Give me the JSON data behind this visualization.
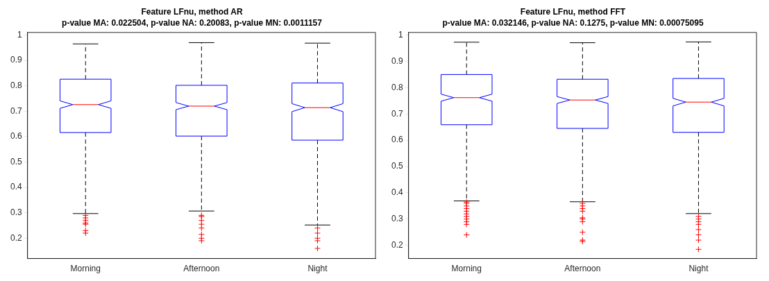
{
  "chart_data": [
    {
      "type": "box",
      "title": "Feature LFnu, method AR",
      "subtitle": "p-value MA: 0.022504, p-value NA: 0.20083, p-value MN: 0.0011157",
      "categories": [
        "Morning",
        "Afternoon",
        "Night"
      ],
      "ylim": [
        0.12,
        1.01
      ],
      "yticks": [
        0.2,
        0.3,
        0.4,
        0.5,
        0.6,
        0.7,
        0.8,
        0.9,
        1
      ],
      "boxes": [
        {
          "low": 0.297,
          "q1": 0.616,
          "median": 0.726,
          "q3": 0.826,
          "high": 0.965,
          "outliers": [
            0.29,
            0.28,
            0.27,
            0.26,
            0.255,
            0.23,
            0.22
          ]
        },
        {
          "low": 0.307,
          "q1": 0.602,
          "median": 0.72,
          "q3": 0.802,
          "high": 0.97,
          "outliers": [
            0.29,
            0.285,
            0.27,
            0.255,
            0.24,
            0.215,
            0.2,
            0.19
          ]
        },
        {
          "low": 0.252,
          "q1": 0.586,
          "median": 0.714,
          "q3": 0.811,
          "high": 0.968,
          "outliers": [
            0.24,
            0.22,
            0.2,
            0.19,
            0.16
          ]
        }
      ]
    },
    {
      "type": "box",
      "title": "Feature LFnu, method FFT",
      "subtitle": "p-value MA: 0.032146, p-value NA: 0.1275, p-value MN: 0.00075095",
      "categories": [
        "Morning",
        "Afternoon",
        "Night"
      ],
      "ylim": [
        0.15,
        1.01
      ],
      "yticks": [
        0.2,
        0.3,
        0.4,
        0.5,
        0.6,
        0.7,
        0.8,
        0.9,
        1
      ],
      "boxes": [
        {
          "low": 0.369,
          "q1": 0.659,
          "median": 0.762,
          "q3": 0.85,
          "high": 0.973,
          "outliers": [
            0.365,
            0.36,
            0.35,
            0.34,
            0.33,
            0.32,
            0.31,
            0.3,
            0.29,
            0.28,
            0.24
          ]
        },
        {
          "low": 0.366,
          "q1": 0.645,
          "median": 0.753,
          "q3": 0.832,
          "high": 0.971,
          "outliers": [
            0.36,
            0.35,
            0.34,
            0.33,
            0.305,
            0.3,
            0.29,
            0.25,
            0.22,
            0.215
          ]
        },
        {
          "low": 0.321,
          "q1": 0.63,
          "median": 0.745,
          "q3": 0.835,
          "high": 0.974,
          "outliers": [
            0.31,
            0.3,
            0.29,
            0.28,
            0.26,
            0.24,
            0.22,
            0.185
          ]
        }
      ]
    }
  ]
}
